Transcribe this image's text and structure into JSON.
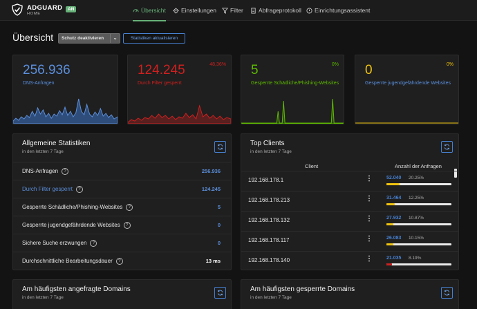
{
  "brand": {
    "name": "ADGUARD",
    "sub": "HOME",
    "badge": "AN"
  },
  "nav": [
    {
      "label": "Übersicht",
      "icon": "dashboard-icon"
    },
    {
      "label": "Einstellungen",
      "icon": "gear-icon"
    },
    {
      "label": "Filter",
      "icon": "filter-icon"
    },
    {
      "label": "Abfrageprotokoll",
      "icon": "document-icon"
    },
    {
      "label": "Einrichtungsassistent",
      "icon": "setup-icon"
    }
  ],
  "page": {
    "title": "Übersicht",
    "protect_btn": "Schutz deaktivieren",
    "refresh_btn": "Statistiken aktualisieren"
  },
  "stats": [
    {
      "value": "256.936",
      "label": "DNS-Anfragen",
      "pct": "",
      "color": "#467fcf"
    },
    {
      "value": "124.245",
      "label": "Durch Filter gesperrt",
      "pct": "48,36%",
      "color": "#cd201f"
    },
    {
      "value": "5",
      "label": "Gesperrte Schädliche/Phishing-Websites",
      "pct": "0%",
      "color": "#5eba00"
    },
    {
      "value": "0",
      "label": "Gesperrte jugendgefährdende Websites",
      "pct": "0%",
      "color": "#f1c40f"
    }
  ],
  "general": {
    "title": "Allgemeine Statistiken",
    "sub": "in den letzten 7 Tage",
    "rows": [
      {
        "label": "DNS-Anfragen",
        "value": "256.936",
        "color": "#5b8fdc"
      },
      {
        "label": "Durch Filter gesperrt",
        "value": "124.245",
        "color": "#5b8fdc"
      },
      {
        "label": "Gesperrte Schädliche/Phishing-Websites",
        "value": "5",
        "color": "#5b8fdc"
      },
      {
        "label": "Gesperrte jugendgefährdende Websites",
        "value": "0",
        "color": "#5b8fdc"
      },
      {
        "label": "Sichere Suche erzwungen",
        "value": "0",
        "color": "#5b8fdc"
      },
      {
        "label": "Durchschnittliche Bearbeitungsdauer",
        "value": "13 ms",
        "color": "#ffffff"
      }
    ]
  },
  "clients": {
    "title": "Top Clients",
    "sub": "in den letzten 7 Tage",
    "col_client": "Client",
    "col_count": "Anzahl der Anfragen",
    "rows": [
      {
        "ip": "192.168.178.1",
        "count": "52.040",
        "pct": "20.25%",
        "fill": 0.2025,
        "color": "#f1c40f"
      },
      {
        "ip": "192.168.178.213",
        "count": "31.464",
        "pct": "12.25%",
        "fill": 0.1225,
        "color": "#f1c40f"
      },
      {
        "ip": "192.168.178.132",
        "count": "27.932",
        "pct": "10.87%",
        "fill": 0.1087,
        "color": "#f1c40f"
      },
      {
        "ip": "192.168.178.117",
        "count": "26.083",
        "pct": "10.15%",
        "fill": 0.1015,
        "color": "#f1c40f"
      },
      {
        "ip": "192.168.178.140",
        "count": "21.035",
        "pct": "8.19%",
        "fill": 0.0819,
        "color": "#cd201f"
      }
    ]
  },
  "domains": {
    "title": "Am häufigsten angefragte Domains",
    "sub": "in den letzten 7 Tage"
  },
  "blocked": {
    "title": "Am häufigsten gesperrte Domains",
    "sub": "in den letzten 7 Tage"
  }
}
